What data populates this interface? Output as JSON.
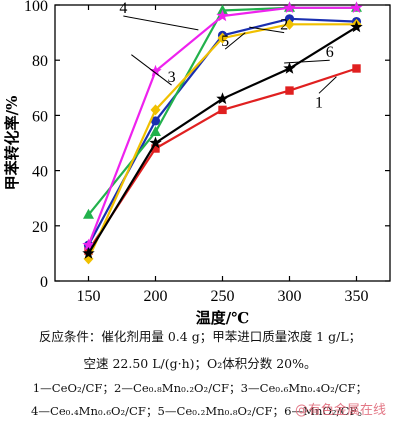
{
  "chart_data": {
    "type": "line",
    "xlabel": "温度/℃",
    "ylabel": "甲苯转化率/%",
    "x": [
      150,
      200,
      250,
      300,
      350
    ],
    "xlim": [
      125,
      375
    ],
    "ylim": [
      0,
      100
    ],
    "xticks": [
      "150",
      "200",
      "250",
      "300",
      "350"
    ],
    "yticks": [
      "0",
      "20",
      "40",
      "60",
      "80",
      "100"
    ],
    "grid": false,
    "series": [
      {
        "name": "1",
        "color": "#e02020",
        "marker": "square",
        "values": [
          11,
          48,
          62,
          69,
          77
        ]
      },
      {
        "name": "2",
        "color": "#1a2fb0",
        "marker": "circle",
        "values": [
          13,
          58,
          89,
          95,
          94
        ]
      },
      {
        "name": "3",
        "color": "#22b14c",
        "marker": "triangle",
        "values": [
          24,
          54,
          98,
          99,
          99
        ]
      },
      {
        "name": "4",
        "color": "#ee22ee",
        "marker": "star",
        "values": [
          13,
          76,
          96,
          99,
          99
        ]
      },
      {
        "name": "5",
        "color": "#f0c000",
        "marker": "diamond",
        "values": [
          8,
          62,
          88,
          93,
          93
        ]
      },
      {
        "name": "6",
        "color": "#000000",
        "marker": "star",
        "values": [
          10,
          50,
          66,
          77,
          92
        ]
      }
    ],
    "series_labels": [
      {
        "text": "1",
        "series": 0
      },
      {
        "text": "2",
        "series": 1
      },
      {
        "text": "3",
        "series": 2
      },
      {
        "text": "4",
        "series": 3
      },
      {
        "text": "5",
        "series": 4
      },
      {
        "text": "6",
        "series": 5
      }
    ]
  },
  "caption": {
    "line1": "反应条件：催化剂用量 0.4 g；甲苯进口质量浓度 1 g/L；",
    "line2": "空速 22.50 L/(g·h)；O₂体积分数 20%。",
    "line3": "1—CeO₂/CF；2—Ce₀.₈Mn₀.₂O₂/CF；3—Ce₀.₆Mn₀.₄O₂/CF；",
    "line4": "4—Ce₀.₄Mn₀.₆O₂/CF；5—Ce₀.₂Mn₀.₈O₂/CF；6—MnO₂/CF。"
  },
  "watermark": "@有色金属在线"
}
